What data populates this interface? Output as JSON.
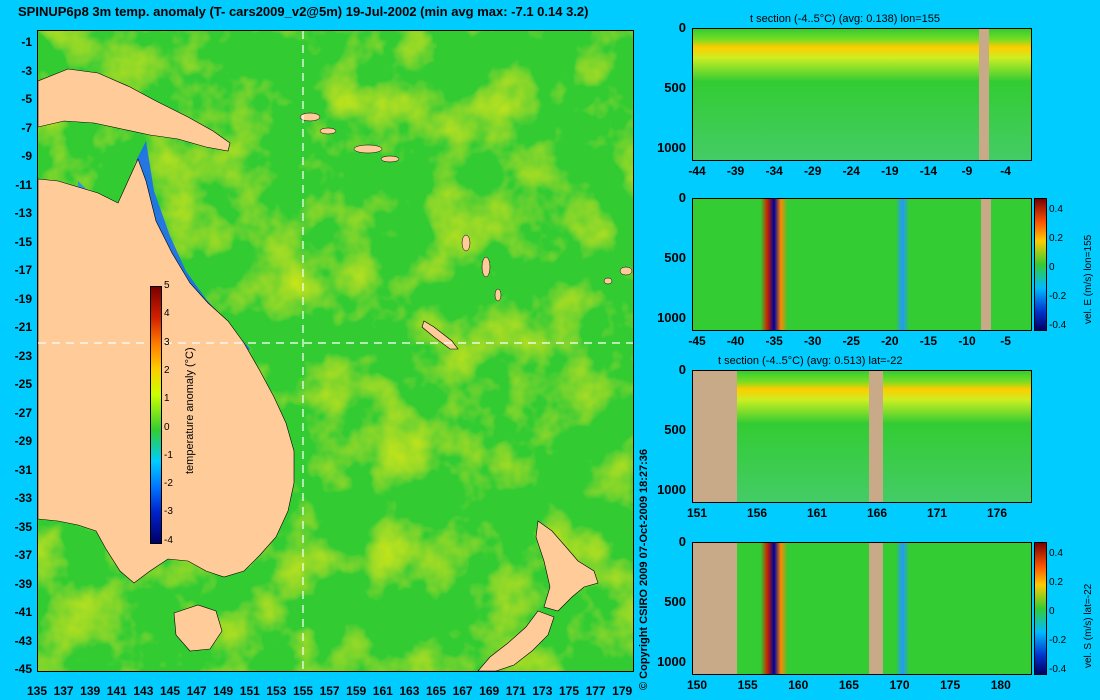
{
  "title": "SPINUP6p8 3m temp. anomaly (T- cars2009_v2@5m) 19-Jul-2002 (min avg max: -7.1 0.14 3.2)",
  "map": {
    "lat_labels": [
      "-1",
      "-3",
      "-5",
      "-7",
      "-9",
      "-11",
      "-13",
      "-15",
      "-17",
      "-19",
      "-21",
      "-23",
      "-25",
      "-27",
      "-29",
      "-31",
      "-33",
      "-35",
      "-37",
      "-39",
      "-41",
      "-43",
      "-45"
    ],
    "lon_labels": [
      "135",
      "137",
      "139",
      "141",
      "143",
      "145",
      "147",
      "149",
      "151",
      "153",
      "155",
      "157",
      "159",
      "161",
      "163",
      "165",
      "167",
      "169",
      "171",
      "173",
      "175",
      "177",
      "179"
    ],
    "colorbar": {
      "label": "temperature anomaly (°C)",
      "ticks": [
        "5",
        "4",
        "3",
        "2",
        "1",
        "0",
        "-1",
        "-2",
        "-3",
        "-4"
      ]
    },
    "crosshair": {
      "lon": 155,
      "lat": -22
    }
  },
  "copyright": "© Copyright CSIRO 2009 07-Oct-2009 18:27:36",
  "sections": [
    {
      "title": "t section (-4..5°C) (avg: 0.138) lon=155",
      "y_ticks": [
        "0",
        "500",
        "1000"
      ],
      "x_ticks": [
        "-44",
        "-39",
        "-34",
        "-29",
        "-24",
        "-19",
        "-14",
        "-9",
        "-4"
      ],
      "side_label": ""
    },
    {
      "title": "",
      "y_ticks": [
        "0",
        "500",
        "1000"
      ],
      "x_ticks": [
        "-45",
        "-40",
        "-35",
        "-30",
        "-25",
        "-20",
        "-15",
        "-10",
        "-5"
      ],
      "side_label": "vel. E (m/s) lon=155",
      "cbar_ticks": [
        "0.4",
        "0.2",
        "0",
        "-0.2",
        "-0.4"
      ]
    },
    {
      "title": "t section (-4..5°C) (avg: 0.513) lat=-22",
      "y_ticks": [
        "0",
        "500",
        "1000"
      ],
      "x_ticks": [
        "151",
        "156",
        "161",
        "166",
        "171",
        "176"
      ],
      "side_label": ""
    },
    {
      "title": "",
      "y_ticks": [
        "0",
        "500",
        "1000"
      ],
      "x_ticks": [
        "150",
        "155",
        "160",
        "165",
        "170",
        "175",
        "180"
      ],
      "side_label": "vel. S (m/s) lat=-22",
      "cbar_ticks": [
        "0.4",
        "0.2",
        "0",
        "-0.2",
        "-0.4"
      ]
    }
  ],
  "colors": {
    "background": "#00ccff",
    "land": "#ffcc99",
    "section_land": "#c8aa88",
    "ocean": "#33cc33"
  }
}
